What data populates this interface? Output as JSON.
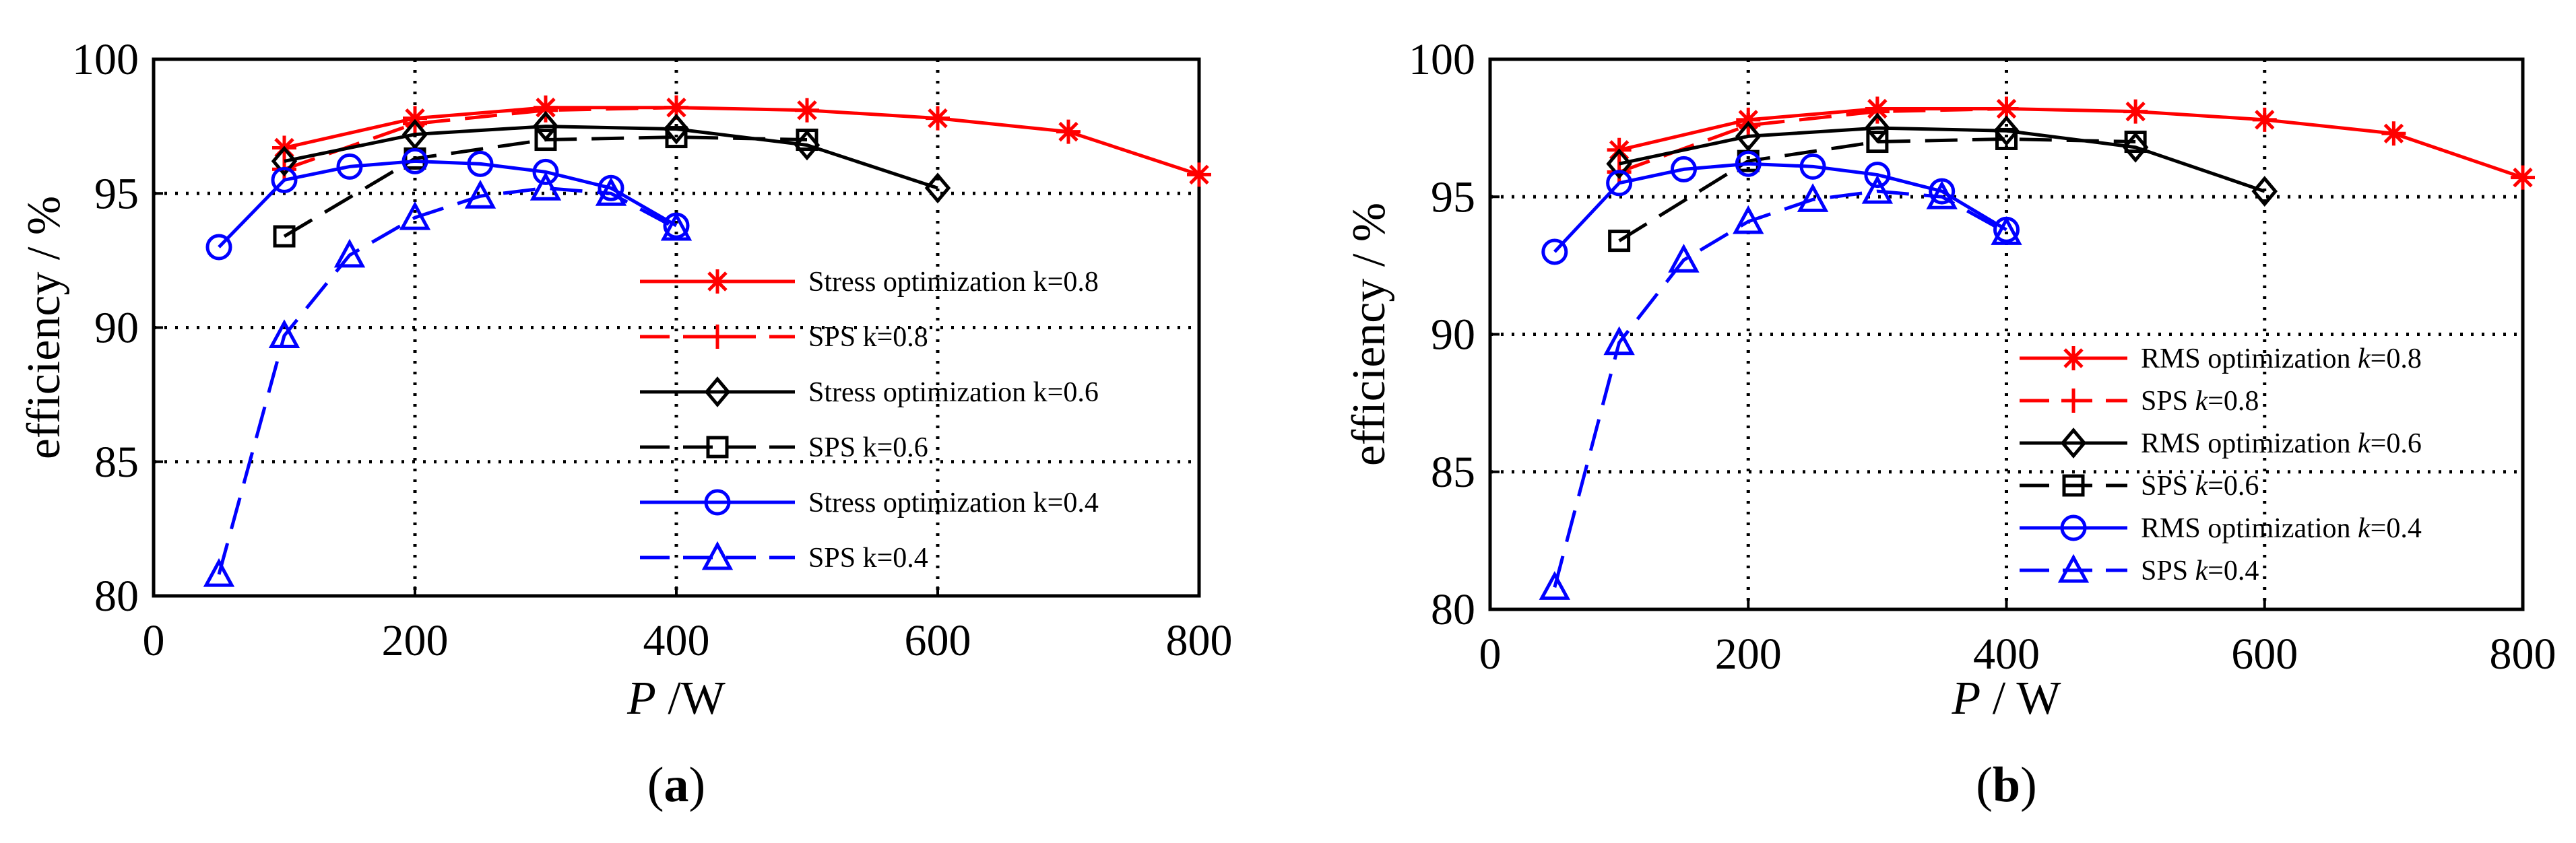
{
  "chart_data": [
    {
      "type": "line",
      "panel_label": "a",
      "caption_open": "(",
      "caption_close": ")",
      "xlabel_italic": "P",
      "xlabel_unit": " /W",
      "ylabel": "efficiency / %",
      "xlim": [
        0,
        800
      ],
      "ylim": [
        80,
        100
      ],
      "xticks": [
        "0",
        "200",
        "400",
        "600",
        "800"
      ],
      "yticks": [
        "80",
        "85",
        "90",
        "95",
        "100"
      ],
      "grid": "dotted",
      "legend_position": "right-center",
      "series": [
        {
          "legend": "Stress optimization k=0.8",
          "color": "#ff0000",
          "style": "solid",
          "marker": "star",
          "x": [
            100,
            200,
            300,
            400,
            500,
            600,
            700,
            800
          ],
          "y": [
            96.7,
            97.8,
            98.2,
            98.2,
            98.1,
            97.8,
            97.3,
            95.7
          ]
        },
        {
          "legend": "SPS k=0.8",
          "color": "#ff0000",
          "style": "dashed",
          "marker": "plus",
          "x": [
            100,
            200,
            300,
            400
          ],
          "y": [
            95.9,
            97.6,
            98.1,
            98.2
          ]
        },
        {
          "legend": "Stress optimization k=0.6",
          "color": "#000000",
          "style": "solid",
          "marker": "diamond",
          "x": [
            100,
            200,
            300,
            400,
            500,
            600
          ],
          "y": [
            96.2,
            97.2,
            97.5,
            97.4,
            96.8,
            95.2
          ]
        },
        {
          "legend": "SPS k=0.6",
          "color": "#000000",
          "style": "dashed",
          "marker": "square",
          "x": [
            100,
            200,
            300,
            400,
            500
          ],
          "y": [
            93.4,
            96.3,
            97.0,
            97.1,
            97.0
          ]
        },
        {
          "legend": "Stress optimization k=0.4",
          "color": "#0000ff",
          "style": "solid",
          "marker": "circle",
          "x": [
            50,
            100,
            150,
            200,
            250,
            300,
            350,
            400
          ],
          "y": [
            93.0,
            95.5,
            96.0,
            96.2,
            96.1,
            95.8,
            95.2,
            93.8
          ]
        },
        {
          "legend": "SPS k=0.4",
          "color": "#0000ff",
          "style": "dashed",
          "marker": "triangle",
          "x": [
            50,
            100,
            150,
            200,
            250,
            300,
            350,
            400
          ],
          "y": [
            80.8,
            89.7,
            92.7,
            94.1,
            94.9,
            95.2,
            95.0,
            93.7
          ]
        }
      ]
    },
    {
      "type": "line",
      "panel_label": "b",
      "caption_open": "(",
      "caption_close": ")",
      "xlabel_italic": "P",
      "xlabel_unit": " / W",
      "ylabel": "efficiency / %",
      "xlim": [
        0,
        800
      ],
      "ylim": [
        80,
        100
      ],
      "xticks": [
        "0",
        "200",
        "400",
        "600",
        "800"
      ],
      "yticks": [
        "80",
        "85",
        "90",
        "95",
        "100"
      ],
      "grid": "dotted",
      "legend_position": "bottom-right",
      "series": [
        {
          "legend": "RMS optimization k=0.8",
          "legend_prefix": "RMS optimization ",
          "legend_k": "k",
          "legend_suffix": "=0.8",
          "color": "#ff0000",
          "style": "solid",
          "marker": "star",
          "x": [
            100,
            200,
            300,
            400,
            500,
            600,
            700,
            800
          ],
          "y": [
            96.7,
            97.8,
            98.2,
            98.2,
            98.1,
            97.8,
            97.3,
            95.7
          ]
        },
        {
          "legend": "SPS k=0.8",
          "legend_prefix": "SPS  ",
          "legend_k": "k",
          "legend_suffix": "=0.8",
          "color": "#ff0000",
          "style": "dashed",
          "marker": "plus",
          "x": [
            100,
            200,
            300,
            400
          ],
          "y": [
            95.9,
            97.6,
            98.1,
            98.2
          ]
        },
        {
          "legend": "RMS optimization k=0.6",
          "legend_prefix": "RMS optimization ",
          "legend_k": "k",
          "legend_suffix": "=0.6",
          "color": "#000000",
          "style": "solid",
          "marker": "diamond",
          "x": [
            100,
            200,
            300,
            400,
            500,
            600
          ],
          "y": [
            96.2,
            97.2,
            97.5,
            97.4,
            96.8,
            95.2
          ]
        },
        {
          "legend": "SPS k=0.6",
          "legend_prefix": "SPS  ",
          "legend_k": "k",
          "legend_suffix": "=0.6",
          "color": "#000000",
          "style": "dashed",
          "marker": "square",
          "x": [
            100,
            200,
            300,
            400,
            500
          ],
          "y": [
            93.4,
            96.3,
            97.0,
            97.1,
            97.0
          ]
        },
        {
          "legend": "RMS optimization k=0.4",
          "legend_prefix": "RMS optimization ",
          "legend_k": "k",
          "legend_suffix": "=0.4",
          "color": "#0000ff",
          "style": "solid",
          "marker": "circle",
          "x": [
            50,
            100,
            150,
            200,
            250,
            300,
            350,
            400
          ],
          "y": [
            93.0,
            95.5,
            96.0,
            96.2,
            96.1,
            95.8,
            95.2,
            93.8
          ]
        },
        {
          "legend": "SPS k=0.4",
          "legend_prefix": "SPS  ",
          "legend_k": "k",
          "legend_suffix": "=0.4",
          "color": "#0000ff",
          "style": "dashed",
          "marker": "triangle",
          "x": [
            50,
            100,
            150,
            200,
            250,
            300,
            350,
            400
          ],
          "y": [
            80.8,
            89.7,
            92.7,
            94.1,
            94.9,
            95.2,
            95.0,
            93.7
          ]
        }
      ]
    }
  ]
}
